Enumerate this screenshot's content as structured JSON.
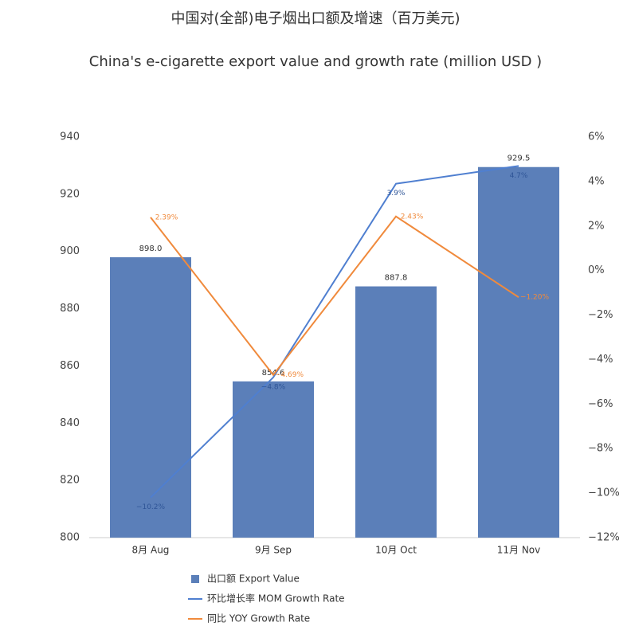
{
  "chart_data": {
    "type": "bar",
    "title": "中国对(全部)电子烟出口额及增速（百万美元)",
    "subtitle": "China's e-cigarette export value and growth rate (million USD )",
    "categories": [
      "8月 Aug",
      "9月 Sep",
      "10月 Oct",
      "11月 Nov"
    ],
    "series": [
      {
        "name": "出口额 Export Value",
        "type": "bar",
        "color": "#5b7fb9",
        "values": [
          898.0,
          854.6,
          887.8,
          929.5
        ],
        "value_labels": [
          "898.0",
          "854.6",
          "887.8",
          "929.5"
        ]
      },
      {
        "name": "环比增长率 MOM Growth Rate",
        "type": "line",
        "axis": "y2",
        "color": "#4f7fd0",
        "values": [
          -10.2,
          -4.8,
          3.9,
          4.7
        ],
        "value_labels": [
          "−10.2%",
          "−4.8%",
          "3.9%",
          "4.7%"
        ]
      },
      {
        "name": "同比 YOY Growth Rate",
        "type": "line",
        "axis": "y2",
        "color": "#f08a3c",
        "values": [
          2.39,
          -4.69,
          2.43,
          -1.2
        ],
        "value_labels": [
          "2.39%",
          "−4.69%",
          "2.43%",
          "−1.20%"
        ]
      }
    ],
    "ylim": [
      800,
      940
    ],
    "yticks": [
      800,
      820,
      840,
      860,
      880,
      900,
      920,
      940
    ],
    "y2lim": [
      -12,
      6
    ],
    "y2ticks": [
      {
        "value": -12,
        "label": "−12%"
      },
      {
        "value": -10,
        "label": "−10%"
      },
      {
        "value": -8,
        "label": "−8%"
      },
      {
        "value": -6,
        "label": "−6%"
      },
      {
        "value": -4,
        "label": "−4%"
      },
      {
        "value": -2,
        "label": "−2%"
      },
      {
        "value": 0,
        "label": "0%"
      },
      {
        "value": 2,
        "label": "2%"
      },
      {
        "value": 4,
        "label": "4%"
      },
      {
        "value": 6,
        "label": "6%"
      }
    ]
  }
}
